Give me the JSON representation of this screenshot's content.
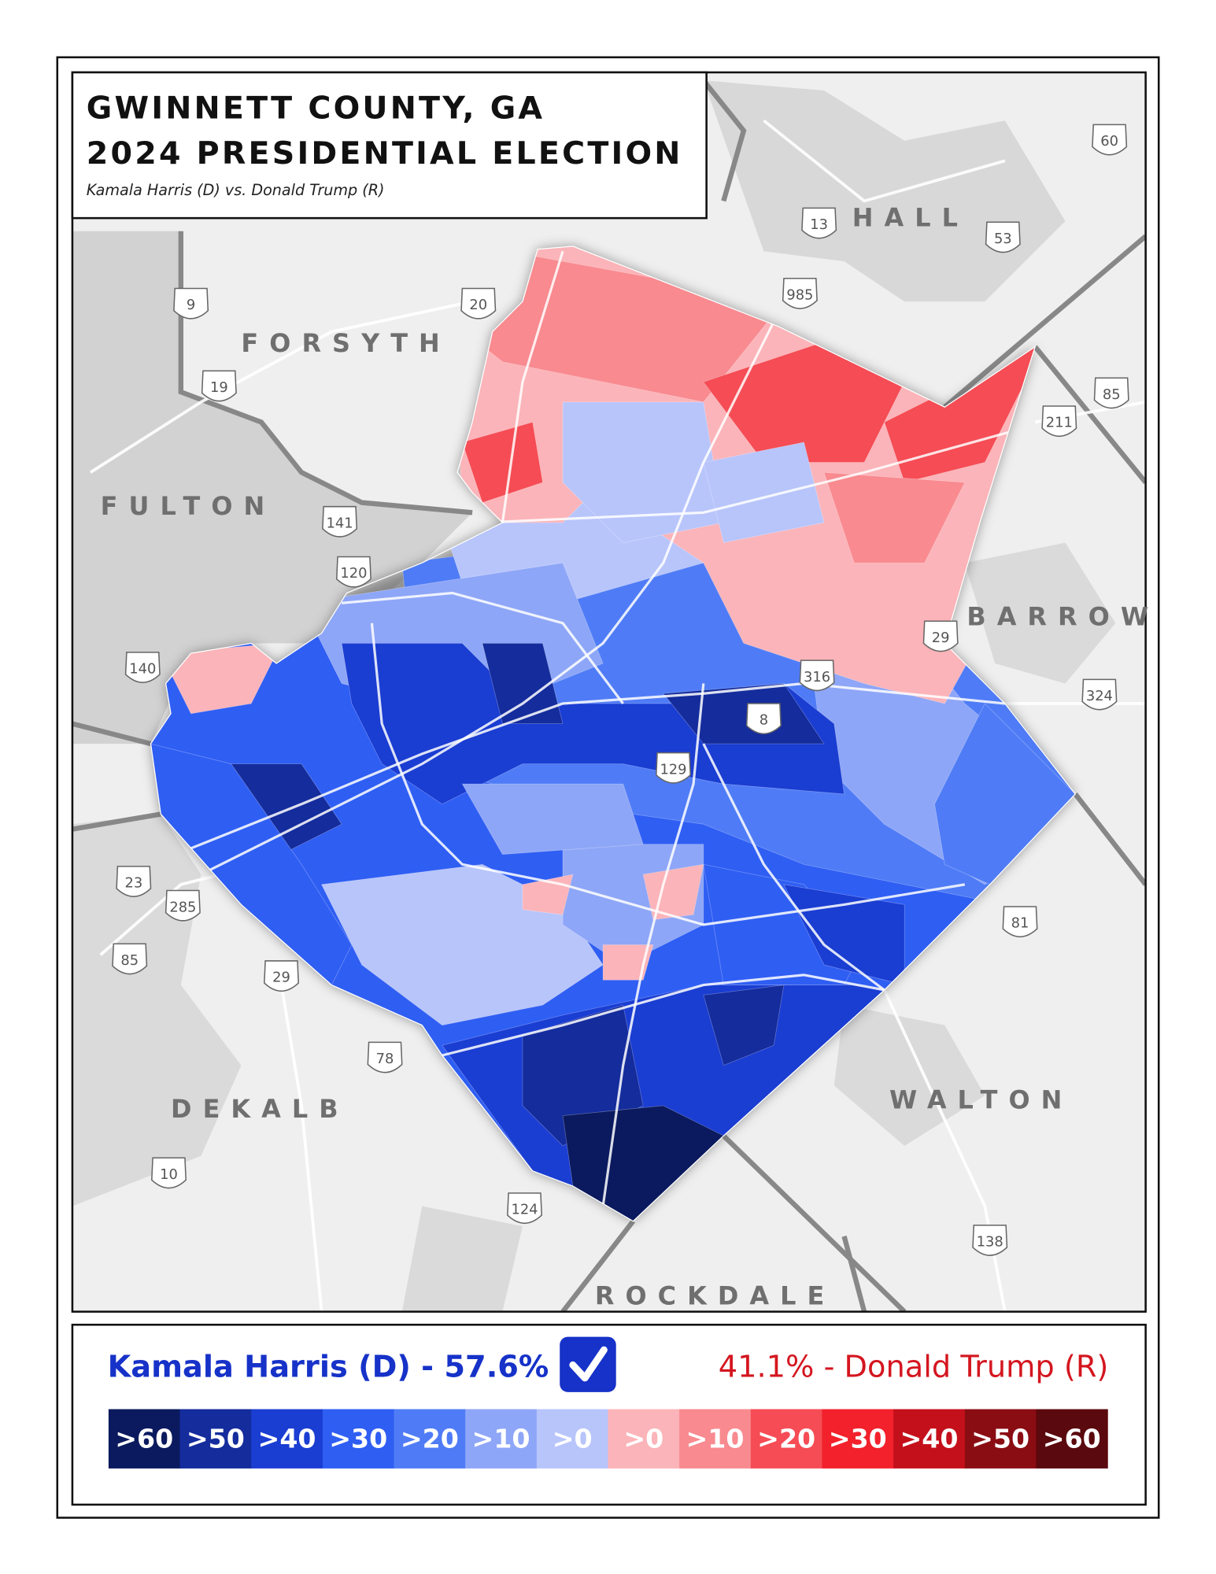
{
  "header": {
    "title_line1": "GWINNETT COUNTY, GA",
    "title_line2": "2024 PRESIDENTIAL ELECTION",
    "subtitle": "Kamala Harris (D) vs. Donald Trump (R)"
  },
  "counties": [
    "HALL",
    "FORSYTH",
    "FULTON",
    "BARROW",
    "DEKALB",
    "WALTON",
    "ROCKDALE"
  ],
  "routes": [
    "60",
    "13",
    "53",
    "985",
    "9",
    "20",
    "19",
    "85",
    "211",
    "141",
    "120",
    "29",
    "316",
    "8",
    "140",
    "324",
    "129",
    "23",
    "285",
    "85",
    "81",
    "29",
    "78",
    "10",
    "124",
    "138"
  ],
  "results": {
    "harris": "Kamala Harris (D) - 57.6%",
    "harris_color": "#1632c8",
    "trump": "41.1% - Donald Trump (R)",
    "trump_color": "#d4161f"
  },
  "legend": [
    {
      "label": ">60",
      "color": "#0b1a5e"
    },
    {
      "label": ">50",
      "color": "#142c9c"
    },
    {
      "label": ">40",
      "color": "#1a3dd2"
    },
    {
      "label": ">30",
      "color": "#2f5ef3"
    },
    {
      "label": ">20",
      "color": "#4f7cf6"
    },
    {
      "label": ">10",
      "color": "#8ea6f7"
    },
    {
      "label": ">0",
      "color": "#b8c5fb"
    },
    {
      "label": ">0",
      "color": "#fbb4b9"
    },
    {
      "label": ">10",
      "color": "#f88a90"
    },
    {
      "label": ">20",
      "color": "#f54c55"
    },
    {
      "label": ">30",
      "color": "#f2212c"
    },
    {
      "label": ">40",
      "color": "#c4101b"
    },
    {
      "label": ">50",
      "color": "#8b0d14"
    },
    {
      "label": ">60",
      "color": "#5a090e"
    }
  ]
}
